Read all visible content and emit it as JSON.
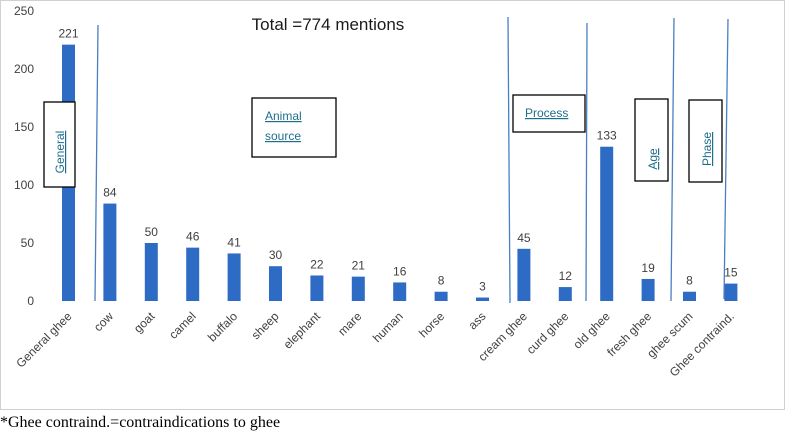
{
  "chart_data": {
    "type": "bar",
    "title": "Total =774 mentions",
    "xlabel": "",
    "ylabel": "",
    "ylim": [
      0,
      250
    ],
    "yticks": [
      0,
      50,
      100,
      150,
      200,
      250
    ],
    "grid": false,
    "legend": "none",
    "categories": [
      "General ghee",
      "cow",
      "goat",
      "camel",
      "buffalo",
      "sheep",
      "elephant",
      "mare",
      "human",
      "horse",
      "ass",
      "cream ghee",
      "curd ghee",
      "old ghee",
      "fresh ghee",
      "ghee scum",
      "Ghee contraind."
    ],
    "values": [
      221,
      84,
      50,
      46,
      41,
      30,
      22,
      21,
      16,
      8,
      3,
      45,
      12,
      133,
      19,
      8,
      15
    ],
    "bar_color": "#2e6bc4",
    "section_labels": {
      "general": "General",
      "animal_source_line1": "Animal",
      "animal_source_line2": "source",
      "process": "Process",
      "age": "Age",
      "phase": "Phase"
    }
  },
  "footnote": "*Ghee contraind.=contraindications to ghee",
  "colors": {
    "bar": "#2e6bc4",
    "divider": "#4a7fc1",
    "section_text": "#1f6e8c"
  }
}
